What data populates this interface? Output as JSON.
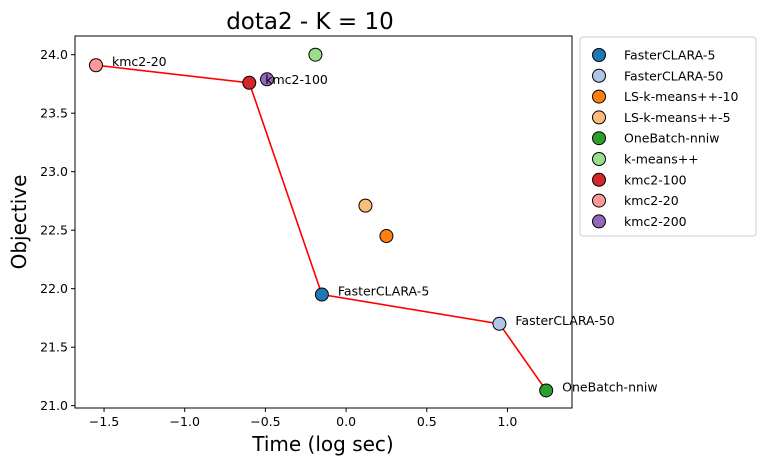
{
  "chart_data": {
    "type": "scatter",
    "title": "dota2 - K = 10",
    "xlabel": "Time (log sec)",
    "ylabel": "Objective",
    "xlim": [
      -1.68,
      1.4
    ],
    "ylim": [
      20.98,
      24.16
    ],
    "xticks": [
      -1.5,
      -1.0,
      -0.5,
      0.0,
      0.5,
      1.0
    ],
    "xtick_labels": [
      "−1.5",
      "−1.0",
      "−0.5",
      "0.0",
      "0.5",
      "1.0"
    ],
    "yticks": [
      21.0,
      21.5,
      22.0,
      22.5,
      23.0,
      23.5,
      24.0
    ],
    "ytick_labels": [
      "21.0",
      "21.5",
      "22.0",
      "22.5",
      "23.0",
      "23.5",
      "24.0"
    ],
    "grid": false,
    "legend_position": "outside-right",
    "series": [
      {
        "name": "FasterCLARA-5",
        "color": "#1f77b4",
        "x": -0.15,
        "y": 21.95
      },
      {
        "name": "FasterCLARA-50",
        "color": "#aec7e8",
        "x": 0.95,
        "y": 21.7
      },
      {
        "name": "LS-k-means++-10",
        "color": "#ff7f0e",
        "x": 0.25,
        "y": 22.45
      },
      {
        "name": "LS-k-means++-5",
        "color": "#ffbb78",
        "x": 0.12,
        "y": 22.71
      },
      {
        "name": "OneBatch-nniw",
        "color": "#2ca02c",
        "x": 1.24,
        "y": 21.13
      },
      {
        "name": "k-means++",
        "color": "#98df8a",
        "x": -0.19,
        "y": 24.0
      },
      {
        "name": "kmc2-100",
        "color": "#d62728",
        "x": -0.6,
        "y": 23.76
      },
      {
        "name": "kmc2-20",
        "color": "#ff9896",
        "x": -1.55,
        "y": 23.91
      },
      {
        "name": "kmc2-200",
        "color": "#9467bd",
        "x": -0.49,
        "y": 23.79
      }
    ],
    "pareto_front": {
      "color": "#ff0000",
      "points": [
        {
          "x": -1.55,
          "y": 23.91
        },
        {
          "x": -0.6,
          "y": 23.76
        },
        {
          "x": -0.15,
          "y": 21.95
        },
        {
          "x": 0.95,
          "y": 21.7
        },
        {
          "x": 1.24,
          "y": 21.13
        }
      ]
    },
    "annotations": [
      {
        "text": "kmc2-20",
        "x": -1.55,
        "y": 23.91
      },
      {
        "text": "kmc2-100",
        "x": -0.6,
        "y": 23.76
      },
      {
        "text": "FasterCLARA-5",
        "x": -0.15,
        "y": 21.95
      },
      {
        "text": "FasterCLARA-50",
        "x": 0.95,
        "y": 21.7
      },
      {
        "text": "OneBatch-nniw",
        "x": 1.24,
        "y": 21.13
      }
    ]
  }
}
